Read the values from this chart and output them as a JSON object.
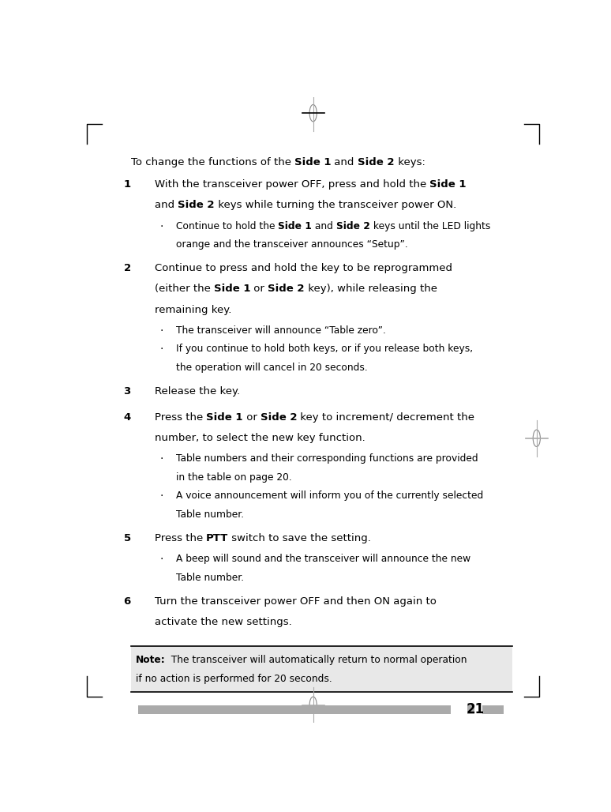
{
  "page_number": "21",
  "bg_color": "#ffffff",
  "text_color": "#000000",
  "note_bg_color": "#e8e8e8",
  "figsize": [
    7.74,
    10.28
  ],
  "dpi": 100,
  "intro_line": [
    {
      "text": "To change the functions of the ",
      "bold": false
    },
    {
      "text": "Side 1",
      "bold": true
    },
    {
      "text": " and ",
      "bold": false
    },
    {
      "text": "Side 2",
      "bold": true
    },
    {
      "text": " keys:",
      "bold": false
    }
  ],
  "steps": [
    {
      "number": "1",
      "lines": [
        [
          {
            "text": "With the transceiver power OFF, press and hold the ",
            "bold": false
          },
          {
            "text": "Side 1",
            "bold": true
          }
        ],
        [
          {
            "text": "and ",
            "bold": false
          },
          {
            "text": "Side 2",
            "bold": true
          },
          {
            "text": " keys while turning the transceiver power ON.",
            "bold": false
          }
        ]
      ],
      "bullet_groups": [
        [
          [
            {
              "text": "Continue to hold the ",
              "bold": false
            },
            {
              "text": "Side 1",
              "bold": true
            },
            {
              "text": " and ",
              "bold": false
            },
            {
              "text": "Side 2",
              "bold": true
            },
            {
              "text": " keys until the LED lights",
              "bold": false
            }
          ],
          [
            {
              "text": "orange and the transceiver announces “Setup”.",
              "bold": false
            }
          ]
        ]
      ]
    },
    {
      "number": "2",
      "lines": [
        [
          {
            "text": "Continue to press and hold the key to be reprogrammed",
            "bold": false
          }
        ],
        [
          {
            "text": "(either the ",
            "bold": false
          },
          {
            "text": "Side 1",
            "bold": true
          },
          {
            "text": " or ",
            "bold": false
          },
          {
            "text": "Side 2",
            "bold": true
          },
          {
            "text": " key), while releasing the",
            "bold": false
          }
        ],
        [
          {
            "text": "remaining key.",
            "bold": false
          }
        ]
      ],
      "bullet_groups": [
        [
          [
            {
              "text": "The transceiver will announce “Table zero”.",
              "bold": false
            }
          ]
        ],
        [
          [
            {
              "text": "If you continue to hold both keys, or if you release both keys,",
              "bold": false
            }
          ],
          [
            {
              "text": "the operation will cancel in 20 seconds.",
              "bold": false
            }
          ]
        ]
      ]
    },
    {
      "number": "3",
      "lines": [
        [
          {
            "text": "Release the key.",
            "bold": false
          }
        ]
      ],
      "bullet_groups": []
    },
    {
      "number": "4",
      "lines": [
        [
          {
            "text": "Press the ",
            "bold": false
          },
          {
            "text": "Side 1",
            "bold": true
          },
          {
            "text": " or ",
            "bold": false
          },
          {
            "text": "Side 2",
            "bold": true
          },
          {
            "text": " key to increment/ decrement the",
            "bold": false
          }
        ],
        [
          {
            "text": "number, to select the new key function.",
            "bold": false
          }
        ]
      ],
      "bullet_groups": [
        [
          [
            {
              "text": "Table numbers and their corresponding functions are provided",
              "bold": false
            }
          ],
          [
            {
              "text": "in the table on page 20.",
              "bold": false
            }
          ]
        ],
        [
          [
            {
              "text": "A voice announcement will inform you of the currently selected",
              "bold": false
            }
          ],
          [
            {
              "text": "Table number.",
              "bold": false
            }
          ]
        ]
      ]
    },
    {
      "number": "5",
      "lines": [
        [
          {
            "text": "Press the ",
            "bold": false
          },
          {
            "text": "PTT",
            "bold": true
          },
          {
            "text": " switch to save the setting.",
            "bold": false
          }
        ]
      ],
      "bullet_groups": [
        [
          [
            {
              "text": "A beep will sound and the transceiver will announce the new",
              "bold": false
            }
          ],
          [
            {
              "text": "Table number.",
              "bold": false
            }
          ]
        ]
      ]
    },
    {
      "number": "6",
      "lines": [
        [
          {
            "text": "Turn the transceiver power OFF and then ON again to",
            "bold": false
          }
        ],
        [
          {
            "text": "activate the new settings.",
            "bold": false
          }
        ]
      ],
      "bullet_groups": []
    }
  ],
  "note_line1": [
    {
      "text": "Note:",
      "bold": true
    },
    {
      "text": "  The transceiver will automatically return to normal operation",
      "bold": false
    }
  ],
  "note_line2": [
    {
      "text": "if no action is performed for 20 seconds.",
      "bold": false
    }
  ]
}
